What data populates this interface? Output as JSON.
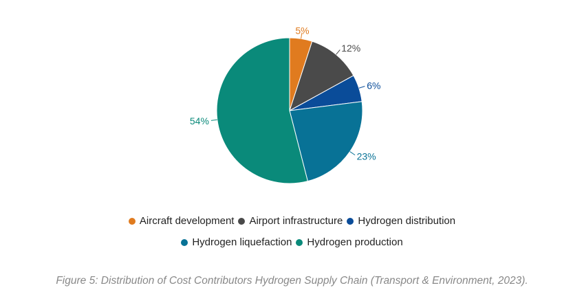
{
  "chart_data": {
    "type": "pie",
    "title": "",
    "start": "top",
    "direction": "clockwise",
    "labels": [
      "Aircraft development",
      "Airport infrastructure",
      "Hydrogen distribution",
      "Hydrogen liquefaction",
      "Hydrogen production"
    ],
    "values": [
      5,
      12,
      6,
      23,
      54
    ],
    "data_labels": [
      "5%",
      "12%",
      "6%",
      "23%",
      "54%"
    ],
    "colors": [
      "#E07B1F",
      "#4A4A4A",
      "#0A4C99",
      "#087296",
      "#0A8A7A"
    ],
    "legend_position": "bottom"
  },
  "caption": "Figure 5: Distribution of Cost Contributors Hydrogen Supply Chain (Transport & Environment, 2023)."
}
